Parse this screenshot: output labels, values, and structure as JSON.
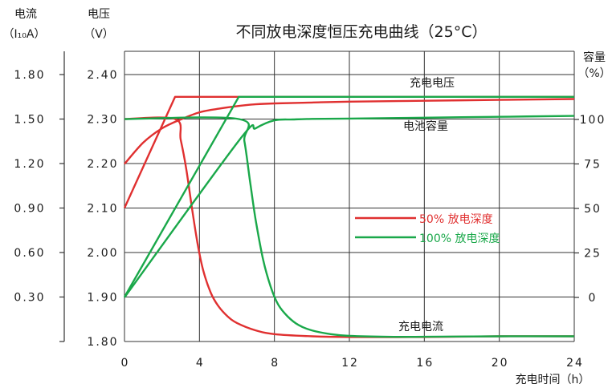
{
  "chart_data": {
    "type": "line",
    "title": "不同放电深度恒压充电曲线（25°C）",
    "xlabel": "充电时间（h）",
    "xlim": [
      0,
      24
    ],
    "x_ticks": [
      "0",
      "4",
      "8",
      "12",
      "16",
      "20",
      "24"
    ],
    "current_axis": {
      "label": "电流",
      "unit_label": "（I₁₀A）",
      "ylim": [
        0,
        1.8
      ],
      "ticks": [
        "0.30",
        "0.60",
        "0.90",
        "1.20",
        "1.50",
        "1.80"
      ]
    },
    "voltage_axis": {
      "label": "电压",
      "unit_label": "（V）",
      "ylim": [
        1.8,
        2.45
      ],
      "ticks": [
        "1.80",
        "1.90",
        "2.00",
        "2.10",
        "2.20",
        "2.30",
        "2.40"
      ]
    },
    "capacity_axis": {
      "label": "容量",
      "unit_label": "（%）",
      "ticks": [
        "0",
        "25",
        "50",
        "75",
        "100"
      ]
    },
    "annotations": {
      "voltage_curve": "充电电压",
      "capacity_curve": "电池容量",
      "current_curve": "充电电流"
    },
    "legend": {
      "placement": "center-right",
      "entries": [
        {
          "label": "50%  放电深度",
          "color": "#e03030"
        },
        {
          "label": "100% 放电深度",
          "color": "#1aa84a"
        }
      ]
    },
    "series": [
      {
        "color": "#e03030",
        "axis": "voltage",
        "x": [
          0,
          2.7,
          24
        ],
        "y": [
          2.1,
          2.35,
          2.35
        ]
      },
      {
        "color": "#e03030",
        "axis": "capacity",
        "x": [
          0,
          1,
          2,
          3,
          4,
          5,
          6,
          7,
          8,
          10,
          12,
          16,
          20,
          24
        ],
        "y": [
          75,
          87,
          95,
          100,
          104,
          106,
          107.5,
          108.5,
          109,
          109.5,
          110,
          110.5,
          111,
          111.5
        ]
      },
      {
        "color": "#e03030",
        "axis": "current",
        "x": [
          0,
          2.7,
          3.0,
          3.3,
          3.6,
          3.9,
          4.2,
          4.6,
          5.0,
          5.5,
          6.0,
          7.0,
          8.0,
          10,
          12,
          16,
          20,
          24
        ],
        "y": [
          1.5,
          1.5,
          1.36,
          1.16,
          0.9,
          0.66,
          0.48,
          0.33,
          0.24,
          0.17,
          0.125,
          0.075,
          0.05,
          0.035,
          0.03,
          0.03,
          0.035,
          0.035
        ]
      },
      {
        "color": "#1aa84a",
        "axis": "voltage",
        "x": [
          0,
          6.1,
          24
        ],
        "y": [
          1.9,
          2.35,
          2.35
        ]
      },
      {
        "color": "#1aa84a",
        "axis": "capacity",
        "x": [
          0,
          6.1,
          7,
          8,
          9,
          10,
          12,
          16,
          20,
          24
        ],
        "y": [
          0,
          88,
          95,
          99.5,
          100,
          100.3,
          100.5,
          101,
          101.5,
          102
        ]
      },
      {
        "color": "#1aa84a",
        "axis": "current",
        "x": [
          0,
          6.1,
          6.4,
          6.7,
          7.0,
          7.4,
          7.8,
          8.2,
          8.7,
          9.3,
          10,
          11,
          12,
          14,
          16,
          20,
          24
        ],
        "y": [
          1.5,
          1.5,
          1.35,
          1.08,
          0.82,
          0.55,
          0.37,
          0.25,
          0.17,
          0.11,
          0.075,
          0.05,
          0.038,
          0.032,
          0.032,
          0.035,
          0.035
        ]
      }
    ]
  }
}
